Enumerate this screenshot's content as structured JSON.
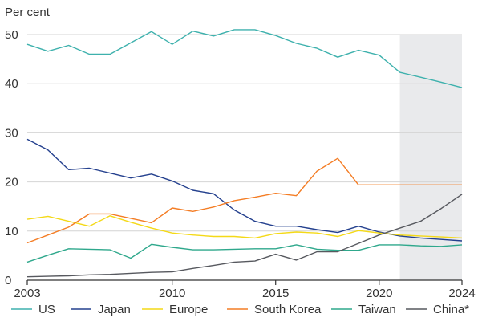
{
  "chart_data": {
    "type": "line",
    "ylabel": "Per cent",
    "xlim": [
      2003,
      2024
    ],
    "ylim": [
      0,
      50
    ],
    "x_ticks": [
      2003,
      2010,
      2015,
      2020,
      2024
    ],
    "x_tick_labels": [
      "2003",
      "2010",
      "2015",
      "2020",
      "2024"
    ],
    "y_ticks": [
      0,
      10,
      20,
      30,
      40,
      50
    ],
    "y_tick_labels": [
      "0",
      "10",
      "20",
      "30",
      "40",
      "50"
    ],
    "grid": "horizontal",
    "legend_position": "bottom",
    "shaded_region": {
      "from": 2021,
      "to": 2024,
      "color": "#e9eaec"
    },
    "x": [
      2003,
      2004,
      2005,
      2006,
      2007,
      2008,
      2009,
      2010,
      2011,
      2012,
      2013,
      2014,
      2015,
      2016,
      2017,
      2018,
      2019,
      2020,
      2021,
      2022,
      2023,
      2024
    ],
    "series": [
      {
        "name": "US",
        "color": "#3eb1ad",
        "values": [
          48,
          46.6,
          47.8,
          46,
          46,
          48.3,
          50.6,
          48,
          50.7,
          49.7,
          51,
          51,
          49.8,
          48.2,
          47.2,
          45.4,
          46.8,
          45.8,
          42.3,
          41.3,
          40.3,
          39.2
        ]
      },
      {
        "name": "Japan",
        "color": "#24408e",
        "values": [
          28.7,
          26.5,
          22.5,
          22.8,
          21.8,
          20.8,
          21.6,
          20.2,
          18.3,
          17.6,
          14.3,
          12,
          11,
          11,
          10.3,
          9.7,
          11,
          9.8,
          9,
          8.6,
          8.3,
          8
        ]
      },
      {
        "name": "Europe",
        "color": "#f4d917",
        "values": [
          12.4,
          13,
          12,
          11,
          13.1,
          11.8,
          10.6,
          9.6,
          9.2,
          8.9,
          8.9,
          8.6,
          9.5,
          9.8,
          9.6,
          8.9,
          10.1,
          9.6,
          9.2,
          9,
          8.8,
          8.6
        ]
      },
      {
        "name": "South Korea",
        "color": "#f47d25",
        "values": [
          7.6,
          9.2,
          10.8,
          13.5,
          13.5,
          12.6,
          11.7,
          14.7,
          14,
          14.9,
          16.2,
          16.9,
          17.7,
          17.2,
          22.2,
          24.8,
          19.4,
          19.4,
          19.4,
          19.4,
          19.4,
          19.4
        ]
      },
      {
        "name": "Taiwan",
        "color": "#2fa88c",
        "values": [
          3.7,
          5.1,
          6.4,
          6.3,
          6.2,
          4.5,
          7.3,
          6.7,
          6.2,
          6.2,
          6.3,
          6.4,
          6.4,
          7.2,
          6.3,
          6.1,
          6.1,
          7.2,
          7.2,
          7,
          6.9,
          7.2
        ]
      },
      {
        "name": "China*",
        "color": "#57595f",
        "values": [
          0.7,
          0.8,
          0.9,
          1.1,
          1.2,
          1.4,
          1.6,
          1.7,
          2.4,
          3,
          3.7,
          3.9,
          5.3,
          4.1,
          5.8,
          5.8,
          7.5,
          9.2,
          10.6,
          12,
          14.6,
          17.5
        ]
      }
    ]
  }
}
